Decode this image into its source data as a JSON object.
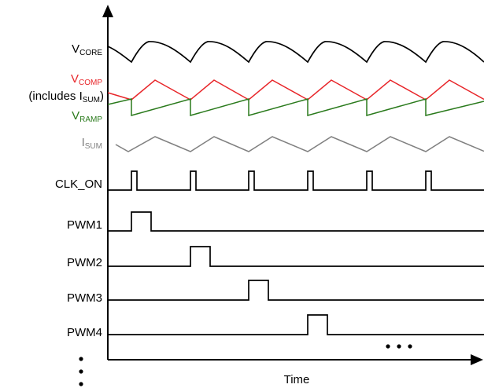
{
  "signals": {
    "vcore": {
      "main": "V",
      "sub": "CORE"
    },
    "vcomp": {
      "main": "V",
      "sub": "COMP",
      "color": "#e8262a"
    },
    "includes": {
      "pre": "(includes I",
      "sub": "SUM",
      "post": ")"
    },
    "vramp": {
      "main": "V",
      "sub": "RAMP",
      "color": "#2a7a1c"
    },
    "isum": {
      "main": "I",
      "sub": "SUM",
      "color": "#808080"
    },
    "clk_on": "CLK_ON",
    "pwm1": "PWM1",
    "pwm2": "PWM2",
    "pwm3": "PWM3",
    "pwm4": "PWM4"
  },
  "axis": {
    "xlabel": "Time"
  },
  "colors": {
    "wave": "#000000",
    "vcomp": "#e8262a",
    "vramp": "#2a7a1c",
    "isum": "#808080"
  }
}
